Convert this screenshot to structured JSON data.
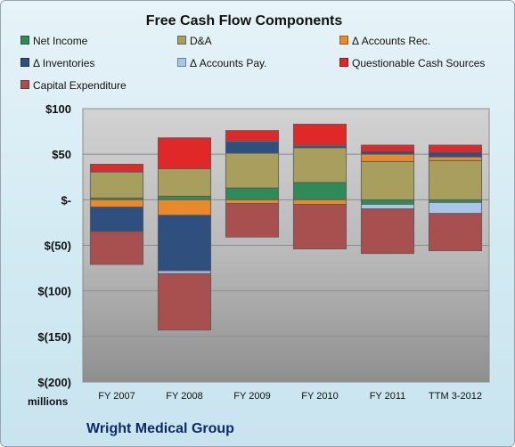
{
  "company": "Wright Medical Group",
  "chart_data": {
    "type": "bar",
    "stacked": true,
    "title": "Free Cash Flow Components",
    "ylabel": "millions",
    "xlabel": "",
    "categories": [
      "FY 2007",
      "FY 2008",
      "FY 2009",
      "FY 2010",
      "FY 2011",
      "TTM 3-2012"
    ],
    "ylim": [
      -200,
      100
    ],
    "yticks": [
      100,
      50,
      0,
      -50,
      -100,
      -150,
      -200
    ],
    "ytick_labels": [
      "$100",
      "$50",
      "$-",
      "$(50)",
      "$(100)",
      "$(150)",
      "$(200)"
    ],
    "grid": true,
    "legend_position": "top",
    "series": [
      {
        "name": "Net Income",
        "color": "#2e8b57",
        "values": [
          2,
          4,
          13,
          19,
          -5,
          -3
        ]
      },
      {
        "name": "D&A",
        "color": "#a89f5e",
        "values": [
          28,
          30,
          38,
          38,
          42,
          43
        ]
      },
      {
        "name": "Δ Accounts Rec.",
        "color": "#e8892b",
        "values": [
          -8,
          -17,
          -4,
          -5,
          8,
          4
        ]
      },
      {
        "name": "Δ Inventories",
        "color": "#2f4f7f",
        "values": [
          -27,
          -61,
          13,
          2,
          3,
          5
        ]
      },
      {
        "name": "Δ Accounts Pay.",
        "color": "#a9c6e8",
        "values": [
          1,
          -3,
          1,
          1,
          -5,
          -12
        ]
      },
      {
        "name": "Questionable Cash Sources",
        "color": "#e02828",
        "values": [
          8,
          34,
          11,
          23,
          7,
          8
        ]
      },
      {
        "name": "Capital Expenditure",
        "color": "#a85050",
        "values": [
          -36,
          -62,
          -37,
          -49,
          -49,
          -41
        ]
      }
    ]
  }
}
